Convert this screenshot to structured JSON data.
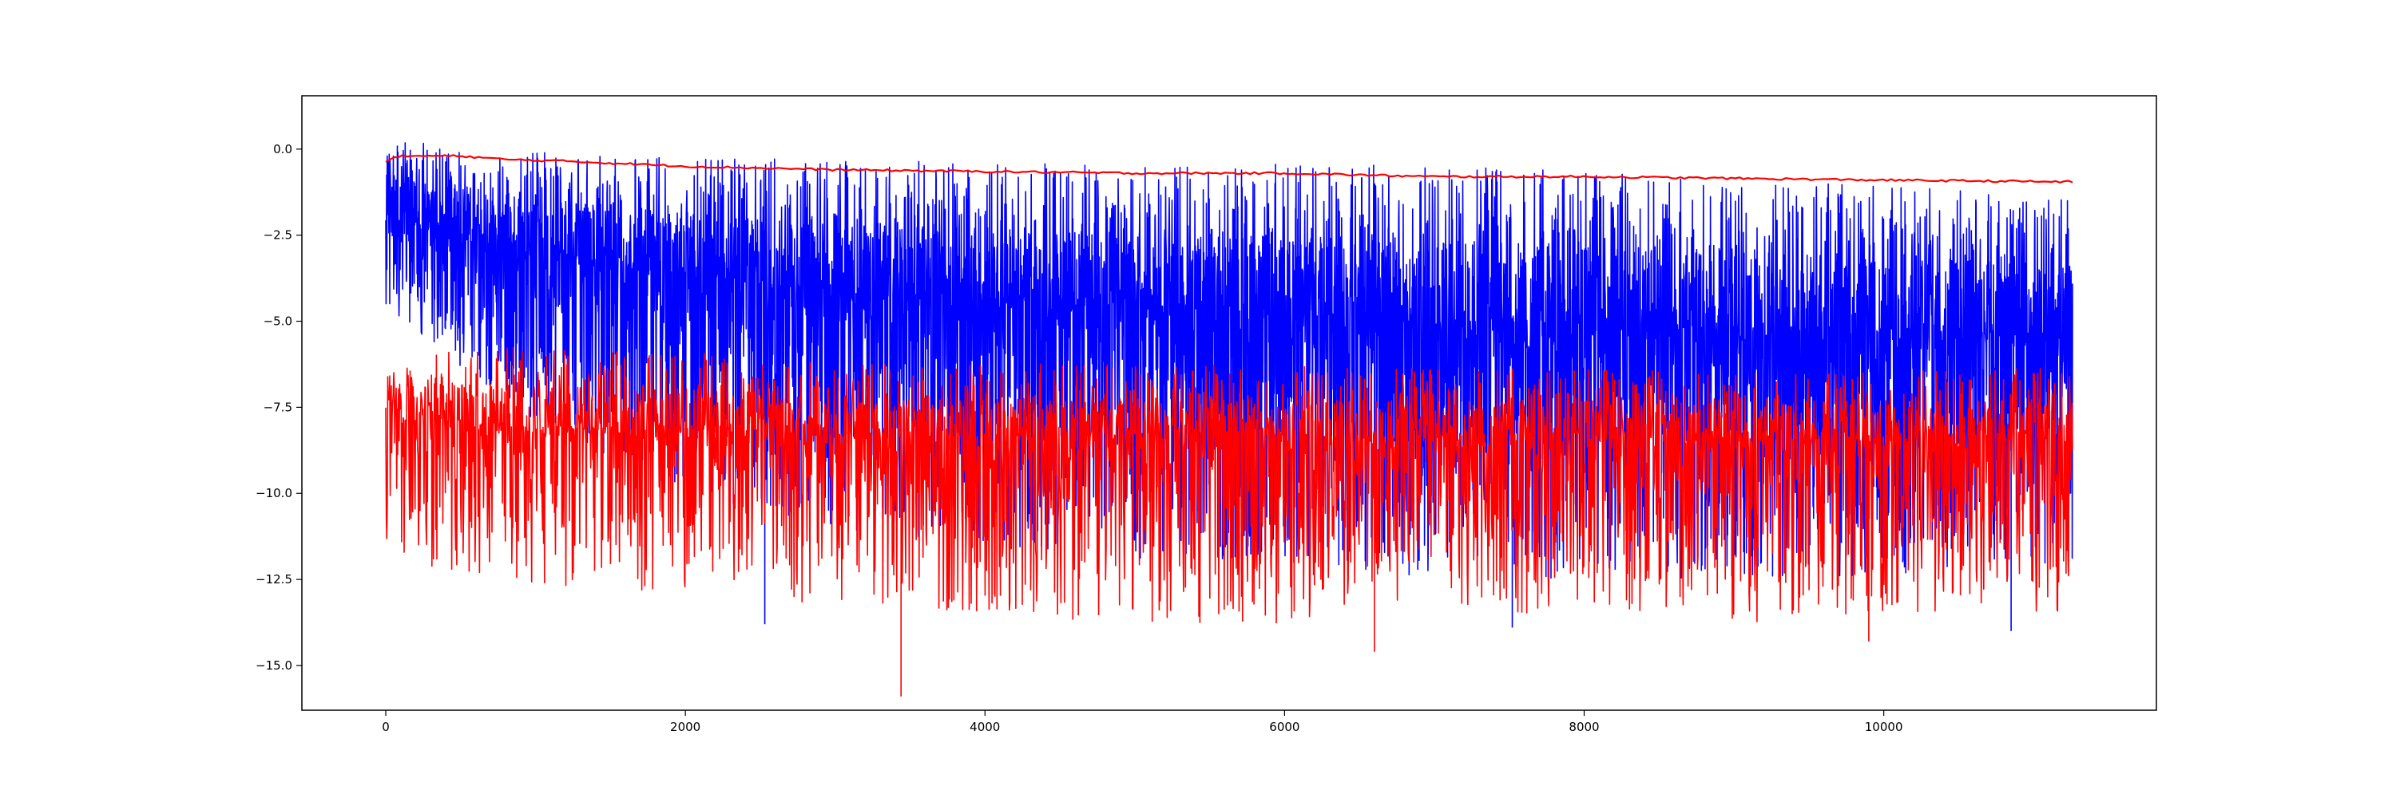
{
  "chart_data": {
    "type": "line",
    "title": "",
    "xlabel": "",
    "ylabel": "",
    "xlim": [
      -560,
      11820
    ],
    "ylim": [
      -16.3,
      1.55
    ],
    "x_ticks": [
      0,
      2000,
      4000,
      6000,
      8000,
      10000
    ],
    "x_tick_labels": [
      "0",
      "2000",
      "4000",
      "6000",
      "8000",
      "10000"
    ],
    "y_ticks": [
      0.0,
      -2.5,
      -5.0,
      -7.5,
      -10.0,
      -12.5,
      -15.0
    ],
    "y_tick_labels": [
      "0.0",
      "−2.5",
      "−5.0",
      "−7.5",
      "−10.0",
      "−12.5",
      "−15.0"
    ],
    "grid": false,
    "legend": "none",
    "x_range": [
      0,
      11260
    ],
    "series": [
      {
        "color": "#0000ff",
        "style": "noisy",
        "description_points": {
          "x": [
            0,
            500,
            1000,
            2000,
            3000,
            4000,
            5000,
            6000,
            7000,
            8000,
            9000,
            10000,
            11260
          ],
          "center": [
            -1.5,
            -2.2,
            -2.8,
            -3.4,
            -4.0,
            -4.2,
            -4.4,
            -4.6,
            -4.8,
            -5.0,
            -5.1,
            -5.2,
            -5.3
          ],
          "upper": [
            0.7,
            0.7,
            0.6,
            0.6,
            0.6,
            0.6,
            0.6,
            0.6,
            0.6,
            0.5,
            0.2,
            0.0,
            -0.5
          ],
          "lower": [
            -4.5,
            -6.5,
            -8.0,
            -10.0,
            -11.0,
            -11.5,
            -12.0,
            -12.0,
            -12.5,
            -12.5,
            -12.5,
            -12.5,
            -12.0
          ]
        },
        "extremes": [
          {
            "x": 2530,
            "y": -13.8
          },
          {
            "x": 7520,
            "y": -13.9
          },
          {
            "x": 10850,
            "y": -14.0
          }
        ]
      },
      {
        "color": "#ff0000",
        "style": "noisy",
        "description_points": {
          "x": [
            0,
            500,
            1000,
            2000,
            3000,
            4000,
            5000,
            6000,
            7000,
            8000,
            9000,
            10000,
            11260
          ],
          "center": [
            -7.5,
            -7.8,
            -8.0,
            -8.0,
            -8.2,
            -8.3,
            -8.2,
            -8.2,
            -8.3,
            -8.2,
            -8.4,
            -8.3,
            -8.2
          ],
          "upper": [
            -5.8,
            -5.2,
            -5.2,
            -5.3,
            -5.7,
            -5.7,
            -5.8,
            -5.8,
            -5.9,
            -5.9,
            -6.0,
            -5.9,
            -5.9
          ],
          "lower": [
            -11.5,
            -12.5,
            -12.8,
            -13.0,
            -13.3,
            -13.5,
            -13.8,
            -13.8,
            -13.5,
            -13.5,
            -13.8,
            -13.5,
            -13.5
          ]
        },
        "extremes": [
          {
            "x": 3440,
            "y": -15.9
          },
          {
            "x": 9900,
            "y": -14.3
          },
          {
            "x": 6600,
            "y": -14.6
          }
        ]
      },
      {
        "color": "#ff0000",
        "style": "smooth",
        "x": [
          0,
          100,
          500,
          800,
          1200,
          2000,
          3000,
          4000,
          5000,
          6000,
          7000,
          8000,
          9000,
          10000,
          11260
        ],
        "y": [
          -0.35,
          -0.2,
          -0.2,
          -0.3,
          -0.35,
          -0.5,
          -0.6,
          -0.65,
          -0.7,
          -0.7,
          -0.8,
          -0.8,
          -0.85,
          -0.9,
          -0.95
        ]
      }
    ]
  }
}
